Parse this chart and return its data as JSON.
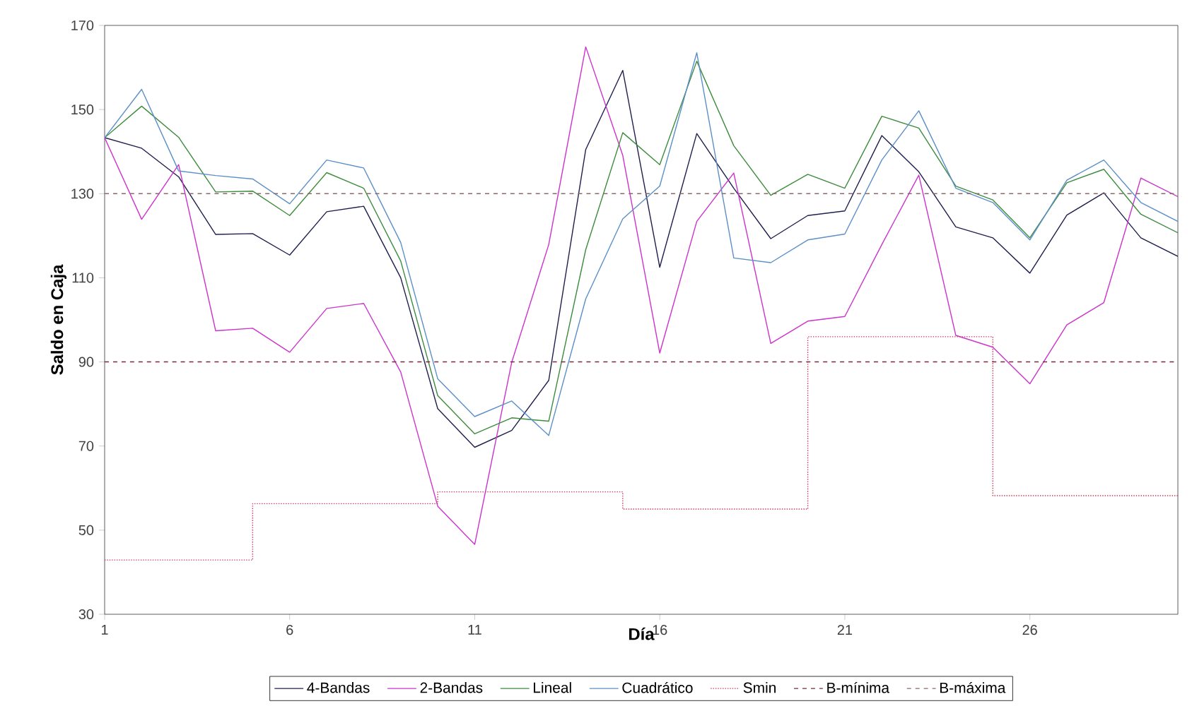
{
  "chart_data": {
    "type": "line",
    "xlabel": "Día",
    "ylabel": "Saldo en Caja",
    "x": [
      1,
      2,
      3,
      4,
      5,
      6,
      7,
      8,
      9,
      10,
      11,
      12,
      13,
      14,
      15,
      16,
      17,
      18,
      19,
      20,
      21,
      22,
      23,
      24,
      25,
      26,
      27,
      28,
      29,
      30
    ],
    "xlim": [
      1,
      30
    ],
    "xticks": [
      1,
      6,
      11,
      16,
      21,
      26
    ],
    "ylim": [
      30,
      170
    ],
    "yticks": [
      30,
      50,
      70,
      90,
      110,
      130,
      150,
      170
    ],
    "grid": false,
    "legend": "bottom",
    "marker": "none",
    "series": [
      {
        "name": "4-Bandas",
        "color": "#1f1f4f",
        "line_style": "solid",
        "values": [
          143.3,
          140.8,
          134,
          120.3,
          120.5,
          115.4,
          125.7,
          127,
          110,
          78.9,
          69.7,
          73.7,
          85.6,
          140.5,
          159.3,
          112.5,
          144.3,
          131.3,
          119.3,
          124.8,
          125.9,
          143.8,
          135.2,
          122.1,
          119.5,
          111.1,
          124.9,
          130.2,
          119.5,
          115.1
        ]
      },
      {
        "name": "2-Bandas",
        "color": "#cc33cc",
        "line_style": "solid",
        "values": [
          143.3,
          123.9,
          136.9,
          97.4,
          98,
          92.3,
          102.7,
          103.9,
          87.6,
          55.7,
          46.6,
          89.9,
          117.9,
          164.9,
          139.1,
          92.1,
          123.4,
          134.9,
          94.4,
          99.7,
          100.8,
          117.9,
          134.4,
          96.3,
          93.5,
          84.8,
          98.8,
          104.1,
          133.7,
          129.3
        ]
      },
      {
        "name": "Lineal",
        "color": "#3c8c3c",
        "line_style": "solid",
        "values": [
          143.3,
          150.8,
          143.4,
          130.4,
          130.6,
          124.8,
          135,
          131.3,
          114,
          82,
          72.9,
          76.7,
          75.9,
          116.7,
          144.5,
          136.9,
          161.5,
          141.4,
          129.6,
          134.6,
          131.3,
          148.4,
          145.6,
          131.8,
          128.5,
          119.5,
          132.6,
          135.8,
          125.1,
          120.7
        ]
      },
      {
        "name": "Cuadrático",
        "color": "#5b8fc8",
        "line_style": "solid",
        "values": [
          143.3,
          154.8,
          135.4,
          134.3,
          133.5,
          127.6,
          138,
          136.1,
          118.4,
          86,
          77,
          80.7,
          72.5,
          105,
          124,
          131.8,
          163.5,
          114.7,
          113.6,
          119,
          120.4,
          138,
          149.7,
          131.3,
          127.9,
          119,
          133.2,
          138,
          127.9,
          123.4
        ]
      },
      {
        "name": "Smin",
        "type": "step",
        "color": "#cc3355",
        "line_style": "dotted",
        "x": [
          1,
          5,
          10,
          15,
          20,
          25,
          30
        ],
        "values": [
          42.9,
          56.3,
          59.1,
          55,
          96,
          58.2,
          58.2
        ]
      }
    ],
    "ref_lines": [
      {
        "axis": "y",
        "value": 90,
        "label": "B-mínima",
        "color": "#7a2a3a",
        "line_style": "dashed"
      },
      {
        "axis": "y",
        "value": 130,
        "label": "B-máxima",
        "color": "#8a6a6a",
        "line_style": "dashed"
      }
    ]
  }
}
